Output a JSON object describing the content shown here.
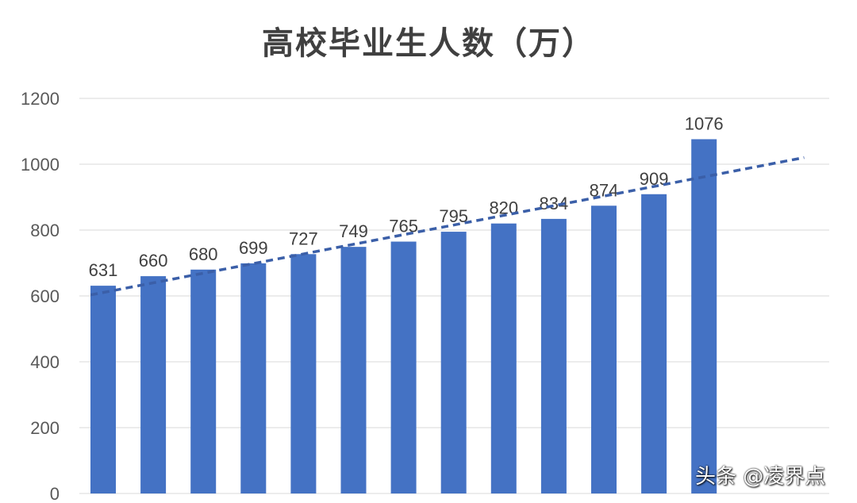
{
  "chart_data": {
    "type": "bar",
    "title": "高校毕业生人数（万）",
    "categories": [
      "",
      "",
      "",
      "",
      "",
      "",
      "",
      "",
      "",
      "",
      "",
      "",
      ""
    ],
    "values": [
      631,
      660,
      680,
      699,
      727,
      749,
      765,
      795,
      820,
      834,
      874,
      909,
      1076
    ],
    "data_labels": [
      "631",
      "660",
      "680",
      "699",
      "727",
      "749",
      "765",
      "795",
      "820",
      "834",
      "874",
      "909",
      "1076"
    ],
    "ylim": [
      0,
      1200
    ],
    "yticks": [
      "0",
      "200",
      "400",
      "600",
      "800",
      "1000",
      "1200"
    ],
    "grid": true,
    "legend": "none",
    "trendline": {
      "type": "linear",
      "style": "dashed",
      "forward_periods": 2
    },
    "colors": {
      "bar": "#4472C4",
      "trendline": "#3B5FA8",
      "grid": "#D9D9D9",
      "text": "#404040"
    }
  },
  "watermark": "头条 @凌界点"
}
